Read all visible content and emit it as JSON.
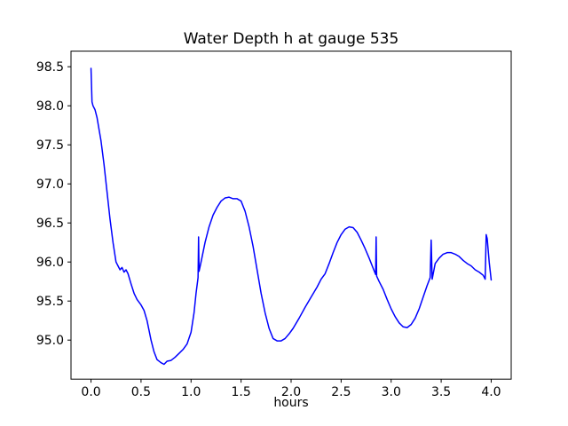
{
  "chart_data": {
    "type": "line",
    "title": "Water Depth h at gauge 535",
    "xlabel": "hours",
    "ylabel": "",
    "grid": false,
    "legend": "none",
    "xlim": [
      -0.2,
      4.2
    ],
    "ylim": [
      94.5,
      98.7
    ],
    "xticks": [
      0.0,
      0.5,
      1.0,
      1.5,
      2.0,
      2.5,
      3.0,
      3.5,
      4.0
    ],
    "xtick_labels": [
      "0.0",
      "0.5",
      "1.0",
      "1.5",
      "2.0",
      "2.5",
      "3.0",
      "3.5",
      "4.0"
    ],
    "yticks": [
      95.0,
      95.5,
      96.0,
      96.5,
      97.0,
      97.5,
      98.0,
      98.5
    ],
    "ytick_labels": [
      "95.0",
      "95.5",
      "96.0",
      "96.5",
      "97.0",
      "97.5",
      "98.0",
      "98.5"
    ],
    "series": [
      {
        "name": "water-depth-h",
        "color": "#0000ff",
        "x": [
          0.0,
          0.01,
          0.02,
          0.04,
          0.06,
          0.08,
          0.1,
          0.13,
          0.16,
          0.19,
          0.22,
          0.25,
          0.27,
          0.29,
          0.31,
          0.33,
          0.35,
          0.37,
          0.4,
          0.43,
          0.46,
          0.5,
          0.53,
          0.56,
          0.6,
          0.63,
          0.66,
          0.7,
          0.73,
          0.76,
          0.8,
          0.84,
          0.88,
          0.92,
          0.96,
          1.0,
          1.03,
          1.05,
          1.07,
          1.075,
          1.08,
          1.1,
          1.14,
          1.18,
          1.22,
          1.26,
          1.3,
          1.34,
          1.38,
          1.42,
          1.46,
          1.5,
          1.54,
          1.58,
          1.62,
          1.66,
          1.7,
          1.74,
          1.78,
          1.82,
          1.86,
          1.9,
          1.94,
          1.98,
          2.02,
          2.08,
          2.14,
          2.2,
          2.26,
          2.3,
          2.34,
          2.38,
          2.42,
          2.46,
          2.5,
          2.54,
          2.58,
          2.62,
          2.66,
          2.7,
          2.74,
          2.78,
          2.82,
          2.845,
          2.85,
          2.855,
          2.88,
          2.92,
          2.96,
          3.0,
          3.04,
          3.08,
          3.12,
          3.16,
          3.2,
          3.24,
          3.28,
          3.32,
          3.36,
          3.39,
          3.4,
          3.41,
          3.44,
          3.48,
          3.52,
          3.56,
          3.6,
          3.64,
          3.68,
          3.72,
          3.76,
          3.8,
          3.84,
          3.88,
          3.92,
          3.94,
          3.95,
          3.96,
          3.98,
          4.0
        ],
        "y": [
          98.48,
          98.05,
          98.0,
          97.95,
          97.85,
          97.7,
          97.55,
          97.25,
          96.9,
          96.55,
          96.25,
          96.0,
          95.95,
          95.9,
          95.93,
          95.87,
          95.9,
          95.85,
          95.72,
          95.6,
          95.52,
          95.45,
          95.38,
          95.25,
          95.0,
          94.85,
          94.75,
          94.71,
          94.69,
          94.73,
          94.74,
          94.78,
          94.83,
          94.88,
          94.95,
          95.1,
          95.35,
          95.6,
          95.8,
          96.32,
          95.88,
          96.0,
          96.25,
          96.45,
          96.6,
          96.7,
          96.78,
          96.82,
          96.83,
          96.81,
          96.81,
          96.78,
          96.65,
          96.45,
          96.2,
          95.9,
          95.6,
          95.35,
          95.15,
          95.02,
          94.99,
          94.99,
          95.02,
          95.08,
          95.15,
          95.28,
          95.42,
          95.55,
          95.68,
          95.78,
          95.85,
          95.98,
          96.12,
          96.25,
          96.35,
          96.42,
          96.45,
          96.44,
          96.38,
          96.28,
          96.17,
          96.05,
          95.92,
          95.84,
          96.32,
          95.82,
          95.75,
          95.65,
          95.52,
          95.4,
          95.3,
          95.22,
          95.17,
          95.16,
          95.2,
          95.28,
          95.4,
          95.55,
          95.7,
          95.8,
          96.28,
          95.78,
          95.98,
          96.05,
          96.1,
          96.12,
          96.12,
          96.1,
          96.07,
          96.02,
          95.98,
          95.95,
          95.9,
          95.87,
          95.83,
          95.78,
          96.35,
          96.3,
          96.0,
          95.77
        ]
      }
    ]
  }
}
